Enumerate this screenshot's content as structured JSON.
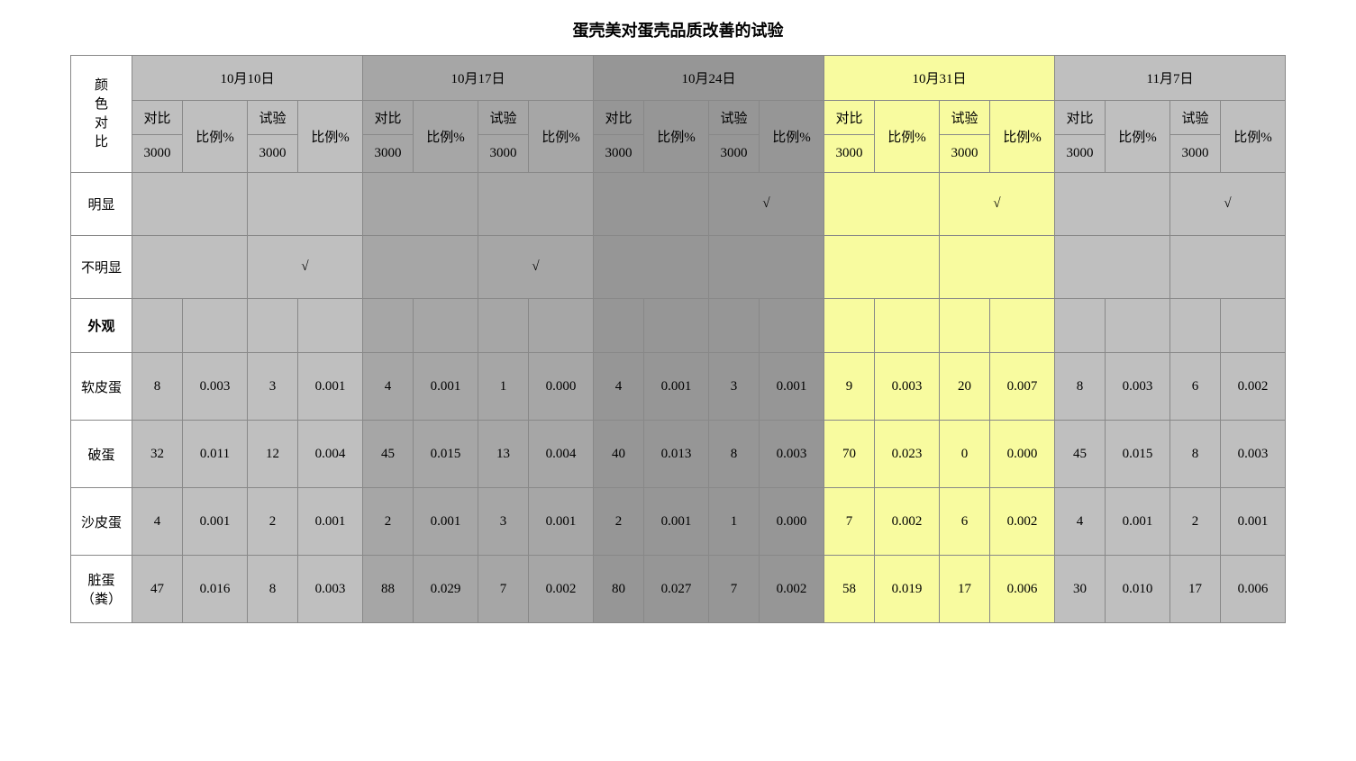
{
  "title": "蛋壳美对蛋壳品质改善的试验",
  "header": {
    "color_compare": "颜色对比",
    "dates": [
      "10月10日",
      "10月17日",
      "10月24日",
      "10月31日",
      "11月7日"
    ],
    "sub_compare": "对比",
    "sub_test": "试验",
    "sub_ratio": "比例%",
    "sub_3000": "3000"
  },
  "check_rows": {
    "obvious": "明显",
    "not_obvious": "不明显",
    "checkmark": "√"
  },
  "appearance": "外观",
  "data_rows": [
    {
      "label": "软皮蛋",
      "values": [
        "8",
        "0.003",
        "3",
        "0.001",
        "4",
        "0.001",
        "1",
        "0.000",
        "4",
        "0.001",
        "3",
        "0.001",
        "9",
        "0.003",
        "20",
        "0.007",
        "8",
        "0.003",
        "6",
        "0.002"
      ]
    },
    {
      "label": "破蛋",
      "values": [
        "32",
        "0.011",
        "12",
        "0.004",
        "45",
        "0.015",
        "13",
        "0.004",
        "40",
        "0.013",
        "8",
        "0.003",
        "70",
        "0.023",
        "0",
        "0.000",
        "45",
        "0.015",
        "8",
        "0.003"
      ]
    },
    {
      "label": "沙皮蛋",
      "values": [
        "4",
        "0.001",
        "2",
        "0.001",
        "2",
        "0.001",
        "3",
        "0.001",
        "2",
        "0.001",
        "1",
        "0.000",
        "7",
        "0.002",
        "6",
        "0.002",
        "4",
        "0.001",
        "2",
        "0.001"
      ]
    },
    {
      "label": "脏蛋（粪）",
      "values": [
        "47",
        "0.016",
        "8",
        "0.003",
        "88",
        "0.029",
        "7",
        "0.002",
        "80",
        "0.027",
        "7",
        "0.002",
        "58",
        "0.019",
        "17",
        "0.006",
        "30",
        "0.010",
        "17",
        "0.006"
      ]
    }
  ],
  "colors": {
    "group_bg": [
      "#bfbfbf",
      "#a6a6a6",
      "#969696",
      "#f8fb9f",
      "#bfbfbf"
    ],
    "white": "#ffffff"
  }
}
